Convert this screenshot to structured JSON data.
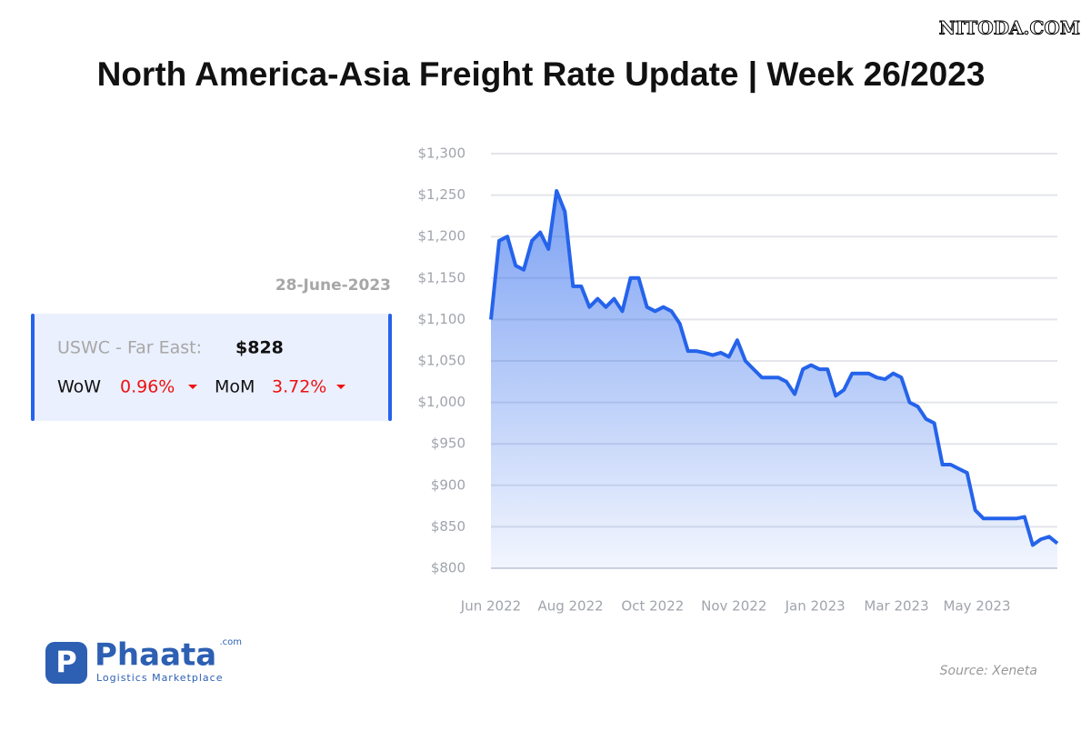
{
  "watermark": "NITODA.COM",
  "panel": {
    "date": "28-June-2023",
    "route": "USWC - Far East:",
    "price": "$828",
    "wow_label": "WoW",
    "wow_value": "0.96%",
    "mom_label": "MoM",
    "mom_value": "3.72%"
  },
  "logo": {
    "name": "Phaata",
    "suffix": ".com",
    "tagline": "Logistics Marketplace"
  },
  "source": "Source: Xeneta",
  "chart_data": {
    "type": "line",
    "title": "North America-Asia Freight Rate Update | Week 26/2023",
    "color": "#2563eb",
    "grid": true,
    "values": [
      1100,
      1195,
      1200,
      1165,
      1160,
      1195,
      1205,
      1185,
      1255,
      1230,
      1140,
      1140,
      1115,
      1125,
      1115,
      1125,
      1110,
      1150,
      1150,
      1115,
      1110,
      1115,
      1110,
      1095,
      1062,
      1062,
      1060,
      1057,
      1060,
      1055,
      1075,
      1050,
      1040,
      1030,
      1030,
      1030,
      1025,
      1010,
      1040,
      1045,
      1040,
      1040,
      1008,
      1015,
      1035,
      1035,
      1035,
      1030,
      1028,
      1035,
      1030,
      1000,
      995,
      980,
      975,
      925,
      925,
      920,
      915,
      870,
      860,
      860,
      860,
      860,
      860,
      862,
      828,
      835,
      838,
      830
    ],
    "xlim": [
      0,
      69
    ],
    "xticks": [
      {
        "value": 0,
        "label": "Jun 2022"
      },
      {
        "value": 9.7,
        "label": "Aug 2022"
      },
      {
        "value": 19.7,
        "label": "Oct 2022"
      },
      {
        "value": 29.6,
        "label": "Nov 2022"
      },
      {
        "value": 39.5,
        "label": "Jan 2023"
      },
      {
        "value": 49.4,
        "label": "Mar 2023"
      },
      {
        "value": 59.2,
        "label": "May 2023"
      }
    ],
    "ylim": [
      800,
      1300
    ],
    "yticks": [
      {
        "value": 800,
        "label": "$800"
      },
      {
        "value": 850,
        "label": "$850"
      },
      {
        "value": 900,
        "label": "$900"
      },
      {
        "value": 950,
        "label": "$950"
      },
      {
        "value": 1000,
        "label": "$1,000"
      },
      {
        "value": 1050,
        "label": "$1,050"
      },
      {
        "value": 1100,
        "label": "$1,100"
      },
      {
        "value": 1150,
        "label": "$1,150"
      },
      {
        "value": 1200,
        "label": "$1,200"
      },
      {
        "value": 1250,
        "label": "$1,250"
      },
      {
        "value": 1300,
        "label": "$1,300"
      }
    ]
  }
}
